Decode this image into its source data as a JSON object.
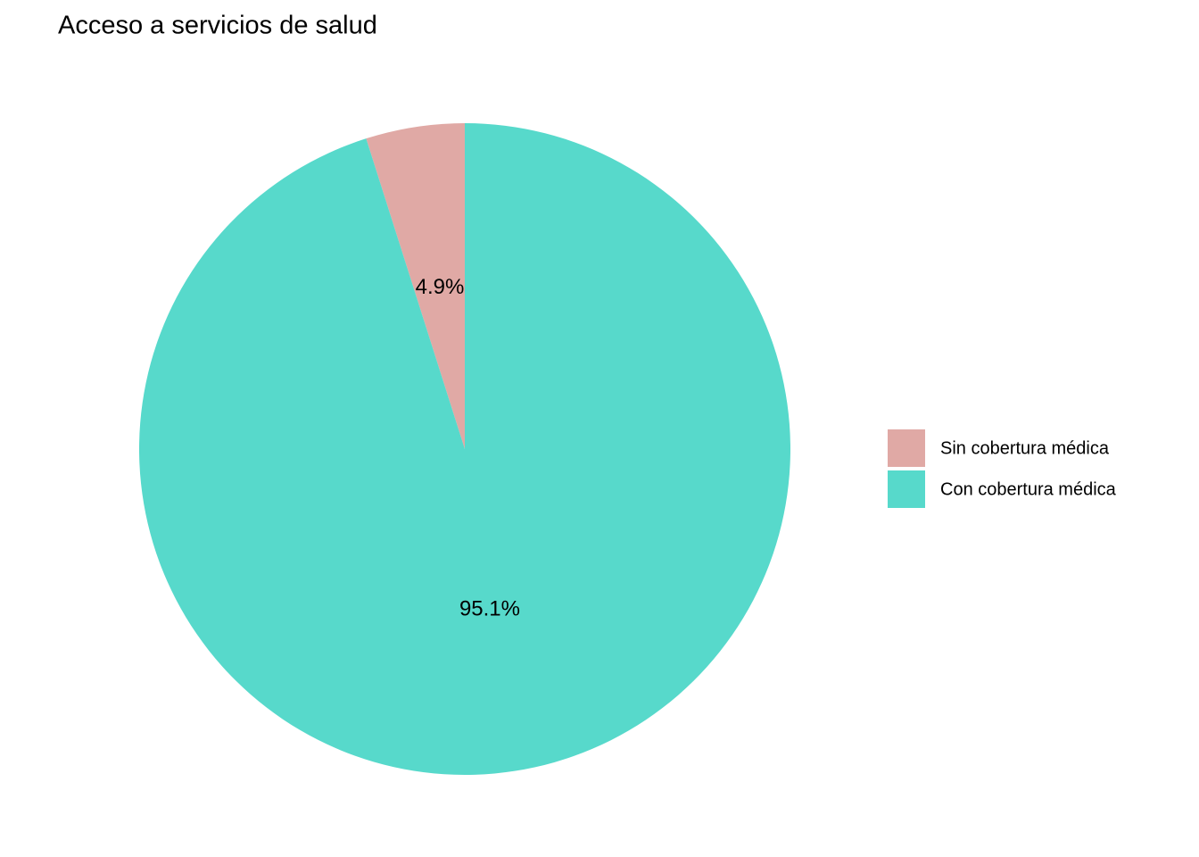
{
  "chart_data": {
    "type": "pie",
    "title": "Acceso a servicios de salud",
    "categories": [
      "Sin cobertura médica",
      "Con cobertura médica"
    ],
    "values": [
      4.9,
      95.1
    ],
    "value_labels": [
      "4.9%",
      "95.1%"
    ],
    "colors": [
      "#e0a9a5",
      "#57d9cb"
    ]
  }
}
